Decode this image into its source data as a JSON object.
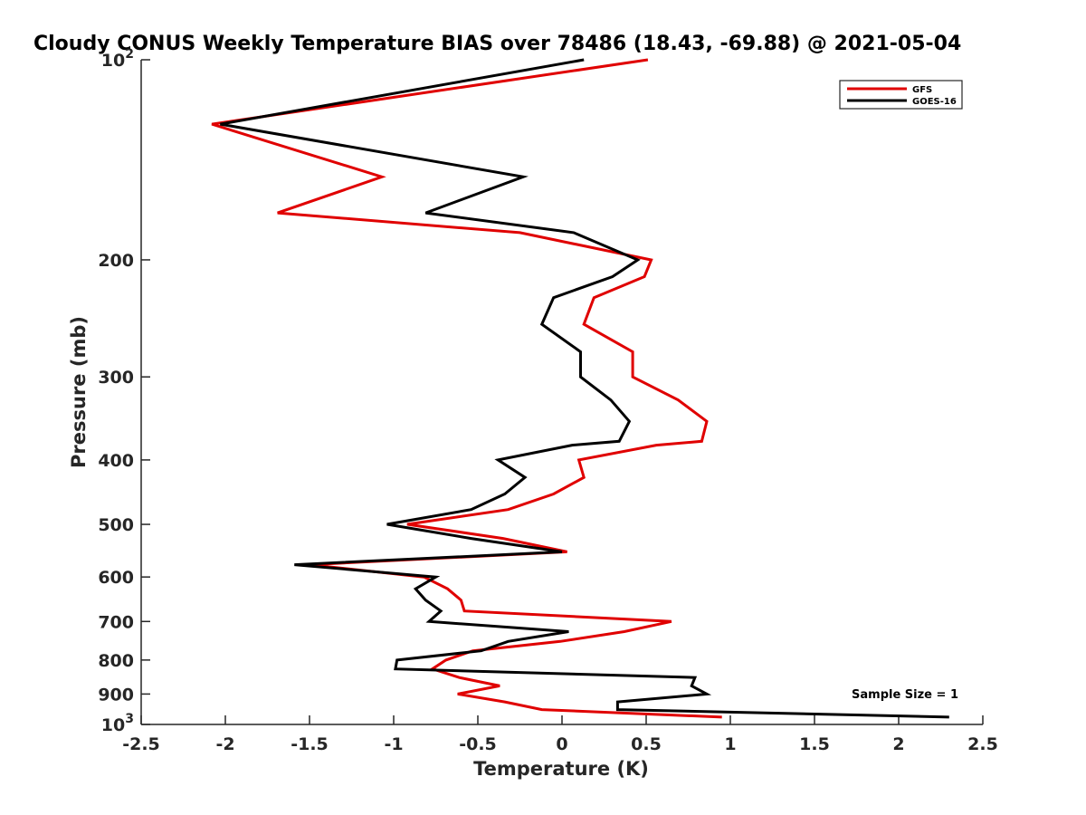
{
  "chart_data": {
    "type": "line",
    "title": "Cloudy CONUS Weekly Temperature BIAS over 78486 (18.43, -69.88) @ 2021-05-04",
    "xlabel": "Temperature (K)",
    "ylabel": "Pressure (mb)",
    "xlim": [
      -2.5,
      2.5
    ],
    "ylim": [
      1000,
      100
    ],
    "yscale": "log",
    "x_ticks": [
      "-2.5",
      "-2",
      "-1.5",
      "-1",
      "-0.5",
      "0",
      "0.5",
      "1",
      "1.5",
      "2",
      "2.5"
    ],
    "y_ticks": [
      {
        "value": 100,
        "base": "10",
        "exp": "2"
      },
      {
        "value": 200,
        "label": "200"
      },
      {
        "value": 300,
        "label": "300"
      },
      {
        "value": 400,
        "label": "400"
      },
      {
        "value": 500,
        "label": "500"
      },
      {
        "value": 600,
        "label": "600"
      },
      {
        "value": 700,
        "label": "700"
      },
      {
        "value": 800,
        "label": "800"
      },
      {
        "value": 900,
        "label": "900"
      },
      {
        "value": 1000,
        "base": "10",
        "exp": "3"
      }
    ],
    "grid": false,
    "legend_position": "top-right",
    "annotation": "Sample Size = 1",
    "series": [
      {
        "name": "GFS",
        "color": "#e00000",
        "points": [
          [
            0.51,
            100
          ],
          [
            -2.08,
            125
          ],
          [
            -1.07,
            150
          ],
          [
            -1.69,
            170
          ],
          [
            -0.25,
            182
          ],
          [
            0.53,
            200
          ],
          [
            0.49,
            212
          ],
          [
            0.19,
            228
          ],
          [
            0.13,
            250
          ],
          [
            0.42,
            275
          ],
          [
            0.42,
            300
          ],
          [
            0.69,
            325
          ],
          [
            0.86,
            350
          ],
          [
            0.83,
            375
          ],
          [
            0.56,
            380
          ],
          [
            0.1,
            400
          ],
          [
            0.13,
            425
          ],
          [
            -0.05,
            450
          ],
          [
            -0.32,
            475
          ],
          [
            -0.92,
            500
          ],
          [
            -0.35,
            525
          ],
          [
            0.03,
            550
          ],
          [
            -1.5,
            575
          ],
          [
            -0.82,
            600
          ],
          [
            -0.68,
            625
          ],
          [
            -0.6,
            650
          ],
          [
            -0.58,
            675
          ],
          [
            0.65,
            700
          ],
          [
            0.37,
            725
          ],
          [
            -0.01,
            750
          ],
          [
            -0.53,
            775
          ],
          [
            -0.69,
            800
          ],
          [
            -0.77,
            825
          ],
          [
            -0.61,
            850
          ],
          [
            -0.37,
            875
          ],
          [
            -0.62,
            900
          ],
          [
            -0.34,
            925
          ],
          [
            -0.12,
            950
          ],
          [
            0.95,
            975
          ]
        ]
      },
      {
        "name": "GOES-16",
        "color": "#000000",
        "points": [
          [
            0.13,
            100
          ],
          [
            -2.03,
            125
          ],
          [
            -0.23,
            150
          ],
          [
            -0.81,
            170
          ],
          [
            0.07,
            182
          ],
          [
            0.45,
            200
          ],
          [
            0.3,
            212
          ],
          [
            -0.05,
            228
          ],
          [
            -0.12,
            250
          ],
          [
            0.11,
            275
          ],
          [
            0.11,
            300
          ],
          [
            0.29,
            325
          ],
          [
            0.4,
            350
          ],
          [
            0.34,
            375
          ],
          [
            0.06,
            380
          ],
          [
            -0.38,
            400
          ],
          [
            -0.22,
            425
          ],
          [
            -0.34,
            450
          ],
          [
            -0.54,
            475
          ],
          [
            -1.04,
            500
          ],
          [
            -0.54,
            525
          ],
          [
            0.0,
            550
          ],
          [
            -1.59,
            575
          ],
          [
            -0.75,
            600
          ],
          [
            -0.87,
            625
          ],
          [
            -0.81,
            650
          ],
          [
            -0.72,
            675
          ],
          [
            -0.79,
            700
          ],
          [
            0.04,
            725
          ],
          [
            -0.32,
            750
          ],
          [
            -0.48,
            775
          ],
          [
            -0.98,
            800
          ],
          [
            -0.99,
            825
          ],
          [
            0.79,
            850
          ],
          [
            0.77,
            875
          ],
          [
            0.86,
            900
          ],
          [
            0.33,
            925
          ],
          [
            0.33,
            950
          ],
          [
            2.3,
            975
          ]
        ]
      }
    ]
  }
}
